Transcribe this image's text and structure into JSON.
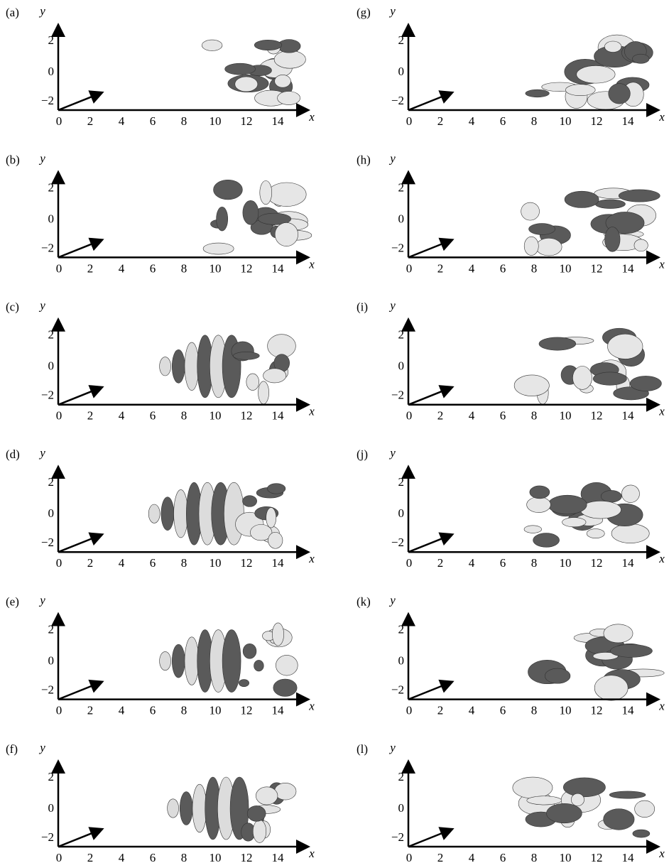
{
  "panels": [
    {
      "label": "(a)"
    },
    {
      "label": "(b)"
    },
    {
      "label": "(c)"
    },
    {
      "label": "(d)"
    },
    {
      "label": "(e)"
    },
    {
      "label": "(f)"
    },
    {
      "label": "(g)"
    },
    {
      "label": "(h)"
    },
    {
      "label": "(i)"
    },
    {
      "label": "(j)"
    },
    {
      "label": "(k)"
    },
    {
      "label": "(l)"
    }
  ],
  "axes": {
    "x_label": "x",
    "y_label": "y",
    "x_ticks": [
      "0",
      "2",
      "4",
      "6",
      "8",
      "10",
      "12",
      "14"
    ],
    "y_ticks": [
      "2",
      "0",
      "−2"
    ]
  }
}
